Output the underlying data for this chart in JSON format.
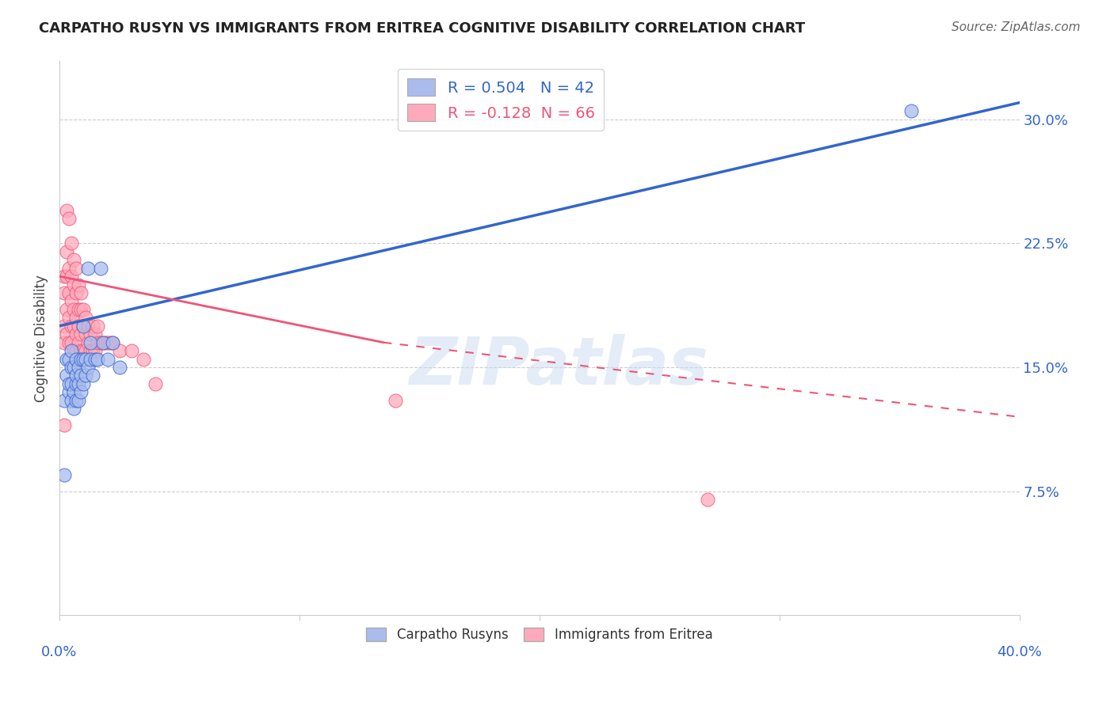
{
  "title": "CARPATHO RUSYN VS IMMIGRANTS FROM ERITREA COGNITIVE DISABILITY CORRELATION CHART",
  "source": "Source: ZipAtlas.com",
  "ylabel": "Cognitive Disability",
  "xlim": [
    0.0,
    0.4
  ],
  "ylim": [
    0.0,
    0.335
  ],
  "grid_color": "#cccccc",
  "background_color": "#ffffff",
  "blue_color": "#aabbee",
  "pink_color": "#ffaabb",
  "blue_line_color": "#3366cc",
  "pink_line_color": "#ee5577",
  "blue_R": 0.504,
  "blue_N": 42,
  "pink_R": -0.128,
  "pink_N": 66,
  "watermark": "ZIPatlas",
  "blue_scatter_x": [
    0.002,
    0.003,
    0.003,
    0.004,
    0.004,
    0.004,
    0.005,
    0.005,
    0.005,
    0.005,
    0.006,
    0.006,
    0.006,
    0.007,
    0.007,
    0.007,
    0.007,
    0.008,
    0.008,
    0.008,
    0.009,
    0.009,
    0.009,
    0.01,
    0.01,
    0.01,
    0.011,
    0.011,
    0.012,
    0.012,
    0.013,
    0.013,
    0.014,
    0.015,
    0.016,
    0.017,
    0.018,
    0.02,
    0.022,
    0.025,
    0.002,
    0.355
  ],
  "blue_scatter_y": [
    0.13,
    0.145,
    0.155,
    0.135,
    0.14,
    0.155,
    0.13,
    0.14,
    0.15,
    0.16,
    0.125,
    0.135,
    0.15,
    0.13,
    0.14,
    0.145,
    0.155,
    0.13,
    0.14,
    0.15,
    0.135,
    0.145,
    0.155,
    0.14,
    0.155,
    0.175,
    0.145,
    0.155,
    0.21,
    0.15,
    0.155,
    0.165,
    0.145,
    0.155,
    0.155,
    0.21,
    0.165,
    0.155,
    0.165,
    0.15,
    0.085,
    0.305
  ],
  "pink_scatter_x": [
    0.002,
    0.002,
    0.002,
    0.002,
    0.003,
    0.003,
    0.003,
    0.003,
    0.003,
    0.004,
    0.004,
    0.004,
    0.004,
    0.004,
    0.005,
    0.005,
    0.005,
    0.005,
    0.005,
    0.006,
    0.006,
    0.006,
    0.006,
    0.006,
    0.007,
    0.007,
    0.007,
    0.007,
    0.007,
    0.008,
    0.008,
    0.008,
    0.008,
    0.009,
    0.009,
    0.009,
    0.009,
    0.01,
    0.01,
    0.01,
    0.011,
    0.011,
    0.011,
    0.012,
    0.012,
    0.013,
    0.013,
    0.014,
    0.014,
    0.015,
    0.015,
    0.016,
    0.016,
    0.017,
    0.018,
    0.019,
    0.02,
    0.021,
    0.022,
    0.025,
    0.03,
    0.035,
    0.04,
    0.14,
    0.002,
    0.27
  ],
  "pink_scatter_y": [
    0.165,
    0.175,
    0.195,
    0.205,
    0.17,
    0.185,
    0.205,
    0.22,
    0.245,
    0.165,
    0.18,
    0.195,
    0.21,
    0.24,
    0.165,
    0.175,
    0.19,
    0.205,
    0.225,
    0.16,
    0.175,
    0.185,
    0.2,
    0.215,
    0.16,
    0.17,
    0.18,
    0.195,
    0.21,
    0.165,
    0.175,
    0.185,
    0.2,
    0.16,
    0.17,
    0.185,
    0.195,
    0.16,
    0.175,
    0.185,
    0.16,
    0.17,
    0.18,
    0.165,
    0.175,
    0.16,
    0.17,
    0.16,
    0.175,
    0.16,
    0.17,
    0.165,
    0.175,
    0.165,
    0.165,
    0.165,
    0.165,
    0.165,
    0.165,
    0.16,
    0.16,
    0.155,
    0.14,
    0.13,
    0.115,
    0.07
  ],
  "blue_trend": [
    0.0,
    0.4,
    0.175,
    0.31
  ],
  "pink_solid": [
    0.0,
    0.135,
    0.205,
    0.165
  ],
  "pink_dashed": [
    0.135,
    0.4,
    0.165,
    0.12
  ]
}
